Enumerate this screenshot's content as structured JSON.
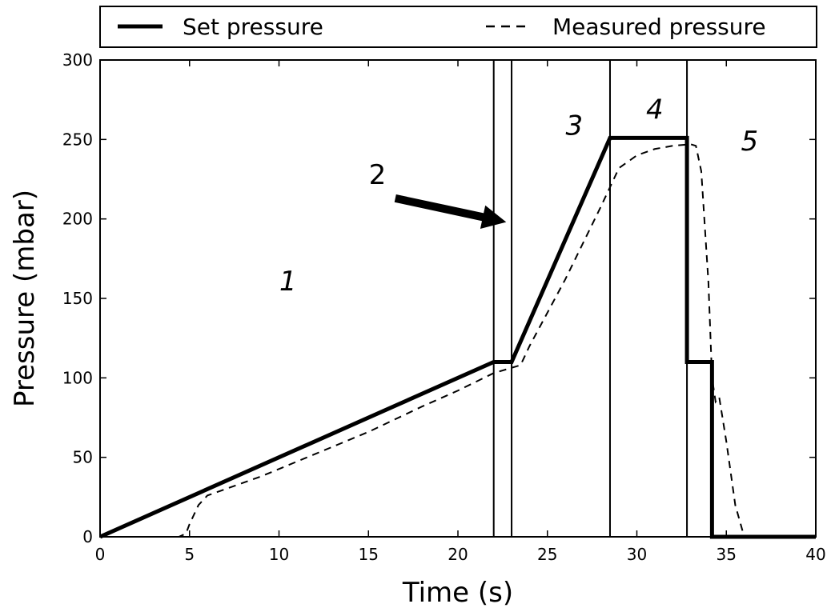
{
  "chart_data": {
    "type": "line",
    "xlabel": "Time (s)",
    "ylabel": "Pressure (mbar)",
    "xlim": [
      0,
      40
    ],
    "ylim": [
      0,
      300
    ],
    "xticks": [
      "0",
      "5",
      "10",
      "15",
      "20",
      "25",
      "30",
      "35",
      "40"
    ],
    "yticks": [
      "0",
      "50",
      "100",
      "150",
      "200",
      "250",
      "300"
    ],
    "grid": false,
    "legend_placement": "top, above plot",
    "series": [
      {
        "name": "Set pressure",
        "style": "solid-thick",
        "color": "#000000",
        "x": [
          0,
          22,
          23,
          28.5,
          32.8,
          32.8,
          34.2,
          34.2,
          40
        ],
        "y": [
          0,
          110,
          110,
          251,
          251,
          110,
          110,
          0,
          0
        ]
      },
      {
        "name": "Measured pressure",
        "style": "dashed",
        "color": "#000000",
        "x": [
          0,
          4.4,
          4.8,
          5.0,
          5.5,
          6.0,
          7.0,
          9.0,
          12.0,
          15.0,
          18.0,
          20.0,
          22.0,
          23.5,
          24.0,
          26.0,
          28.0,
          29.0,
          30.0,
          31.0,
          32.0,
          33.0,
          33.3,
          33.6,
          34.0,
          34.2,
          34.4,
          34.6,
          35.0,
          35.5,
          36.0,
          40.0
        ],
        "y": [
          0,
          0,
          2,
          8,
          20,
          26,
          30,
          38,
          52,
          66,
          82,
          92,
          103,
          108,
          120,
          162,
          208,
          232,
          240,
          244,
          246,
          247,
          246,
          230,
          160,
          100,
          85,
          88,
          60,
          20,
          0,
          0
        ]
      }
    ],
    "vertical_lines_x": [
      22,
      23,
      28.5,
      32.8
    ],
    "region_labels": [
      {
        "text": "1",
        "x": 10.5,
        "y": 155
      },
      {
        "text": "3",
        "x": 26.5,
        "y": 253
      },
      {
        "text": "4",
        "x": 31.0,
        "y": 263
      },
      {
        "text": "5",
        "x": 36.3,
        "y": 243
      }
    ],
    "arrow_annotation": {
      "text": "2",
      "text_x": 15.5,
      "text_y": 222,
      "from_x": 16.5,
      "from_y": 213,
      "to_x": 22.7,
      "to_y": 198
    }
  }
}
